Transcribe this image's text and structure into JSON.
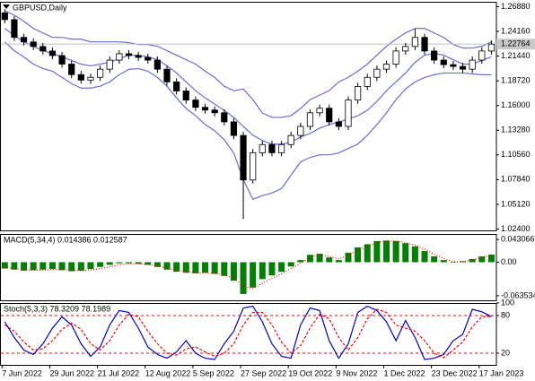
{
  "chart_data": [
    {
      "type": "candlestick",
      "title": "GBPUSD,Daily",
      "open": [
        1.262,
        1.2546,
        1.235,
        1.23,
        1.225,
        1.22,
        1.215,
        1.2056,
        1.194,
        1.188,
        1.191,
        1.2,
        1.21,
        1.217,
        1.215,
        1.213,
        1.21,
        1.2,
        1.186,
        1.176,
        1.166,
        1.158,
        1.155,
        1.152,
        1.142,
        1.127,
        1.078,
        1.108,
        1.117,
        1.108,
        1.117,
        1.127,
        1.137,
        1.152,
        1.157,
        1.142,
        1.137,
        1.166,
        1.181,
        1.191,
        1.2,
        1.2056,
        1.22,
        1.225,
        1.235,
        1.22,
        1.21,
        1.205,
        1.203,
        1.2,
        1.21,
        1.22
      ],
      "high": [
        1.266,
        1.2586,
        1.239,
        1.234,
        1.229,
        1.224,
        1.219,
        1.2096,
        1.198,
        1.195,
        1.204,
        1.214,
        1.221,
        1.221,
        1.219,
        1.217,
        1.214,
        1.204,
        1.19,
        1.18,
        1.17,
        1.162,
        1.159,
        1.156,
        1.146,
        1.131,
        1.112,
        1.121,
        1.121,
        1.121,
        1.131,
        1.141,
        1.156,
        1.161,
        1.161,
        1.146,
        1.17,
        1.185,
        1.195,
        1.204,
        1.2096,
        1.224,
        1.229,
        1.2446,
        1.239,
        1.224,
        1.214,
        1.209,
        1.207,
        1.214,
        1.224,
        1.2316
      ],
      "low": [
        1.2506,
        1.231,
        1.226,
        1.221,
        1.216,
        1.211,
        1.2016,
        1.19,
        1.184,
        1.184,
        1.187,
        1.196,
        1.206,
        1.211,
        1.209,
        1.206,
        1.196,
        1.182,
        1.172,
        1.162,
        1.154,
        1.151,
        1.148,
        1.138,
        1.123,
        1.035,
        1.074,
        1.104,
        1.104,
        1.104,
        1.113,
        1.123,
        1.133,
        1.148,
        1.138,
        1.133,
        1.133,
        1.162,
        1.177,
        1.187,
        1.196,
        1.2016,
        1.216,
        1.221,
        1.216,
        1.206,
        1.201,
        1.199,
        1.196,
        1.196,
        1.206,
        1.216
      ],
      "close": [
        1.2546,
        1.235,
        1.23,
        1.225,
        1.22,
        1.215,
        1.2056,
        1.194,
        1.188,
        1.191,
        1.2,
        1.21,
        1.217,
        1.215,
        1.213,
        1.21,
        1.2,
        1.186,
        1.176,
        1.166,
        1.158,
        1.155,
        1.152,
        1.142,
        1.127,
        1.078,
        1.108,
        1.117,
        1.108,
        1.117,
        1.127,
        1.137,
        1.152,
        1.157,
        1.142,
        1.137,
        1.166,
        1.181,
        1.191,
        1.2,
        1.2056,
        1.22,
        1.225,
        1.235,
        1.22,
        1.21,
        1.205,
        1.203,
        1.2,
        1.21,
        1.22,
        1.2276
      ],
      "up_color": "#ffffff",
      "down_color": "#000000",
      "bands": {
        "color": "#6b6bdc",
        "upper": [
          1.2644,
          1.2595,
          1.2527,
          1.2448,
          1.2399,
          1.235,
          1.235,
          1.2331,
          1.2331,
          1.2301,
          1.2301,
          1.2301,
          1.2301,
          1.2292,
          1.2272,
          1.2272,
          1.2252,
          1.2203,
          1.2154,
          1.2105,
          1.2056,
          1.1978,
          1.1909,
          1.1812,
          1.1763,
          1.1782,
          1.1665,
          1.1518,
          1.1469,
          1.1469,
          1.1488,
          1.1567,
          1.1665,
          1.1714,
          1.1763,
          1.186,
          1.1909,
          1.1978,
          1.2056,
          1.2154,
          1.2252,
          1.2331,
          1.2399,
          1.2448,
          1.2448,
          1.2399,
          1.235,
          1.2272,
          1.2233,
          1.2233,
          1.2252,
          1.2301
        ],
        "middle": [
          1.2448,
          1.237,
          1.2301,
          1.2252,
          1.2203,
          1.2174,
          1.2135,
          1.2096,
          1.2056,
          1.2037,
          1.2056,
          1.2076,
          1.2115,
          1.2154,
          1.2154,
          1.2135,
          1.2105,
          1.2037,
          1.1958,
          1.186,
          1.1763,
          1.1684,
          1.1616,
          1.1547,
          1.1469,
          1.1371,
          1.1273,
          1.1214,
          1.1175,
          1.1175,
          1.1195,
          1.1253,
          1.1292,
          1.1351,
          1.139,
          1.142,
          1.1449,
          1.1488,
          1.1547,
          1.1645,
          1.1763,
          1.186,
          1.1958,
          1.2076,
          1.2154,
          1.2174,
          1.2154,
          1.2105,
          1.2056,
          1.2056,
          1.2096,
          1.2135
        ],
        "lower": [
          1.2301,
          1.2203,
          1.2135,
          1.2056,
          1.2007,
          1.1978,
          1.1909,
          1.1841,
          1.1792,
          1.1792,
          1.1812,
          1.186,
          1.1939,
          1.1998,
          1.2007,
          1.1978,
          1.1909,
          1.1812,
          1.1684,
          1.1567,
          1.1488,
          1.139,
          1.1322,
          1.1224,
          1.1077,
          1.0783,
          1.0568,
          1.0607,
          1.0636,
          1.0685,
          1.0832,
          1.0979,
          1.1028,
          1.1057,
          1.1057,
          1.1077,
          1.1126,
          1.1175,
          1.1273,
          1.139,
          1.1518,
          1.1665,
          1.1782,
          1.186,
          1.1909,
          1.1939,
          1.1958,
          1.1958,
          1.1958,
          1.1949,
          1.1939,
          1.1939
        ]
      },
      "last_price": 1.22764,
      "ylim": [
        1.0215,
        1.2742
      ],
      "yticks": [
        {
          "value": 1.2688,
          "label": "1.26880"
        },
        {
          "value": 1.2416,
          "label": "1.24160"
        },
        {
          "value": 1.2144,
          "label": "1.21440"
        },
        {
          "value": 1.1872,
          "label": "1.18720"
        },
        {
          "value": 1.16,
          "label": "1.16000"
        },
        {
          "value": 1.1328,
          "label": "1.13280"
        },
        {
          "value": 1.1056,
          "label": "1.10560"
        },
        {
          "value": 1.0784,
          "label": "1.07840"
        },
        {
          "value": 1.0512,
          "label": "1.05120"
        },
        {
          "value": 1.024,
          "label": "1.02400"
        }
      ]
    },
    {
      "type": "bar",
      "title": "MACD(5,34,4) 0.014386 0.012587",
      "series": [
        {
          "type": "bar",
          "color": "#008000",
          "values": [
            -0.012,
            -0.014,
            -0.016,
            -0.015,
            -0.014,
            -0.013,
            -0.015,
            -0.017,
            -0.016,
            -0.013,
            -0.009,
            -0.005,
            -0.002,
            -0.002,
            -0.003,
            -0.005,
            -0.009,
            -0.014,
            -0.018,
            -0.02,
            -0.021,
            -0.02,
            -0.022,
            -0.026,
            -0.035,
            -0.06,
            -0.048,
            -0.032,
            -0.025,
            -0.018,
            -0.008,
            0.004,
            0.014,
            0.016,
            0.009,
            0.004,
            0.018,
            0.028,
            0.034,
            0.04,
            0.041,
            0.04,
            0.036,
            0.03,
            0.021,
            0.011,
            0.004,
            -0.001,
            0.002,
            0.006,
            0.011,
            0.014386
          ]
        },
        {
          "type": "line",
          "color": "#ff0000",
          "dash": "dotted",
          "values": [
            -0.01,
            -0.012,
            -0.014,
            -0.015,
            -0.015,
            -0.014,
            -0.014,
            -0.015,
            -0.016,
            -0.015,
            -0.012,
            -0.009,
            -0.005,
            -0.003,
            -0.003,
            -0.004,
            -0.007,
            -0.011,
            -0.015,
            -0.018,
            -0.02,
            -0.02,
            -0.021,
            -0.024,
            -0.03,
            -0.045,
            -0.05,
            -0.04,
            -0.03,
            -0.022,
            -0.012,
            -0.002,
            0.009,
            0.014,
            0.011,
            0.006,
            0.013,
            0.022,
            0.03,
            0.037,
            0.04,
            0.04,
            0.037,
            0.032,
            0.025,
            0.015,
            0.007,
            0.001,
            0.001,
            0.004,
            0.009,
            0.012587
          ]
        }
      ],
      "ylim": [
        -0.0738,
        0.0534
      ],
      "yticks": [
        0.043066,
        {
          "value": 0,
          "label": "0.00"
        },
        -0.063534
      ]
    },
    {
      "type": "line",
      "title": "Stoch(5,3,3) 78.3209 78.1989",
      "series": [
        {
          "type": "line",
          "color": "#0000cd",
          "values": [
            70,
            45,
            25,
            18,
            35,
            60,
            78,
            65,
            35,
            15,
            30,
            65,
            88,
            85,
            60,
            30,
            18,
            12,
            22,
            40,
            20,
            12,
            10,
            35,
            55,
            92,
            95,
            70,
            35,
            15,
            12,
            65,
            92,
            88,
            40,
            12,
            35,
            85,
            95,
            88,
            70,
            40,
            72,
            45,
            10,
            12,
            18,
            40,
            50,
            90,
            86,
            78.3209
          ]
        },
        {
          "type": "line",
          "color": "#ff0000",
          "dash": "dashed",
          "values": [
            65,
            55,
            38,
            25,
            27,
            40,
            58,
            68,
            58,
            35,
            25,
            40,
            65,
            82,
            78,
            55,
            35,
            20,
            17,
            27,
            30,
            22,
            15,
            20,
            35,
            65,
            85,
            85,
            65,
            38,
            20,
            32,
            60,
            82,
            75,
            45,
            25,
            45,
            75,
            90,
            85,
            65,
            60,
            55,
            40,
            20,
            13,
            25,
            38,
            62,
            78,
            78.1989
          ]
        }
      ],
      "levels": [
        80,
        20
      ],
      "level_color": "#ff0000",
      "ylim": [
        0,
        100
      ],
      "yticks": [
        100,
        80,
        20
      ],
      "categories": [
        "7 Jun 2022",
        null,
        null,
        null,
        null,
        "29 Jun 2022",
        null,
        null,
        null,
        null,
        "21 Jul 2022",
        null,
        null,
        null,
        null,
        "12 Aug 2022",
        null,
        null,
        null,
        null,
        "5 Sep 2022",
        null,
        null,
        null,
        null,
        "27 Sep 2022",
        null,
        null,
        null,
        null,
        "19 Oct 2022",
        null,
        null,
        null,
        null,
        "9 Nov 2022",
        null,
        null,
        null,
        null,
        "1 Dec 2022",
        null,
        null,
        null,
        null,
        "23 Dec 2022",
        null,
        null,
        null,
        null,
        "17 Jan 2023",
        null
      ]
    }
  ]
}
